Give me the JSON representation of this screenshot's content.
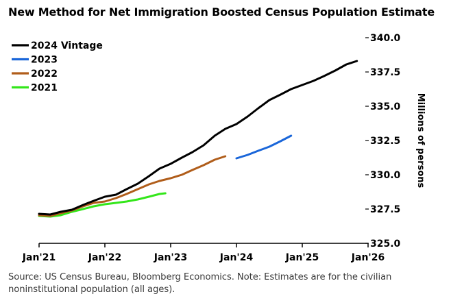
{
  "chart_data": {
    "type": "line",
    "title": "New Method for Net Immigration Boosted Census Population Estimate",
    "xlabel": "",
    "ylabel": "Millions of persons",
    "ylim": [
      325.0,
      340.0
    ],
    "yticks": [
      {
        "value": 340.0,
        "label": "340.0"
      },
      {
        "value": 337.5,
        "label": "337.5"
      },
      {
        "value": 335.0,
        "label": "335.0"
      },
      {
        "value": 332.5,
        "label": "332.5"
      },
      {
        "value": 330.0,
        "label": "330.0"
      },
      {
        "value": 327.5,
        "label": "327.5"
      },
      {
        "value": 325.0,
        "label": "325.0"
      }
    ],
    "xlim": [
      2021.0,
      2026.0
    ],
    "xticks": [
      {
        "value": 2021,
        "label": "Jan'21"
      },
      {
        "value": 2022,
        "label": "Jan'22"
      },
      {
        "value": 2023,
        "label": "Jan'23"
      },
      {
        "value": 2024,
        "label": "Jan'24"
      },
      {
        "value": 2025,
        "label": "Jan'25"
      },
      {
        "value": 2026,
        "label": "Jan'26"
      }
    ],
    "grid": false,
    "legend_position": "top-left",
    "series": [
      {
        "name": "2024 Vintage",
        "color": "#000000",
        "points": [
          [
            2021.0,
            327.15
          ],
          [
            2021.17,
            327.1
          ],
          [
            2021.33,
            327.3
          ],
          [
            2021.5,
            327.45
          ],
          [
            2021.67,
            327.8
          ],
          [
            2021.83,
            328.1
          ],
          [
            2022.0,
            328.4
          ],
          [
            2022.17,
            328.55
          ],
          [
            2022.33,
            328.95
          ],
          [
            2022.5,
            329.35
          ],
          [
            2022.67,
            329.9
          ],
          [
            2022.83,
            330.45
          ],
          [
            2023.0,
            330.8
          ],
          [
            2023.17,
            331.25
          ],
          [
            2023.33,
            331.65
          ],
          [
            2023.5,
            332.15
          ],
          [
            2023.67,
            332.85
          ],
          [
            2023.83,
            333.35
          ],
          [
            2024.0,
            333.7
          ],
          [
            2024.17,
            334.25
          ],
          [
            2024.33,
            334.85
          ],
          [
            2024.5,
            335.45
          ],
          [
            2024.67,
            335.85
          ],
          [
            2024.83,
            336.25
          ],
          [
            2025.0,
            336.55
          ],
          [
            2025.17,
            336.85
          ],
          [
            2025.33,
            337.2
          ],
          [
            2025.5,
            337.6
          ],
          [
            2025.67,
            338.05
          ],
          [
            2025.83,
            338.3
          ]
        ]
      },
      {
        "name": "2023",
        "color": "#1a66d9",
        "points": [
          [
            2024.0,
            331.2
          ],
          [
            2024.17,
            331.45
          ],
          [
            2024.33,
            331.75
          ],
          [
            2024.5,
            332.05
          ],
          [
            2024.67,
            332.45
          ],
          [
            2024.83,
            332.85
          ]
        ]
      },
      {
        "name": "2022",
        "color": "#b05d1a",
        "points": [
          [
            2021.0,
            327.05
          ],
          [
            2021.17,
            327.0
          ],
          [
            2021.33,
            327.2
          ],
          [
            2021.5,
            327.4
          ],
          [
            2021.67,
            327.7
          ],
          [
            2021.83,
            327.95
          ],
          [
            2022.0,
            328.05
          ],
          [
            2022.17,
            328.3
          ],
          [
            2022.33,
            328.6
          ],
          [
            2022.5,
            328.95
          ],
          [
            2022.67,
            329.3
          ],
          [
            2022.83,
            329.55
          ],
          [
            2023.0,
            329.75
          ],
          [
            2023.17,
            330.0
          ],
          [
            2023.33,
            330.35
          ],
          [
            2023.5,
            330.7
          ],
          [
            2023.67,
            331.1
          ],
          [
            2023.83,
            331.35
          ]
        ]
      },
      {
        "name": "2021",
        "color": "#33e61a",
        "points": [
          [
            2021.0,
            327.0
          ],
          [
            2021.17,
            326.95
          ],
          [
            2021.33,
            327.05
          ],
          [
            2021.5,
            327.3
          ],
          [
            2021.67,
            327.5
          ],
          [
            2021.83,
            327.7
          ],
          [
            2022.0,
            327.85
          ],
          [
            2022.17,
            327.95
          ],
          [
            2022.33,
            328.05
          ],
          [
            2022.5,
            328.2
          ],
          [
            2022.67,
            328.4
          ],
          [
            2022.83,
            328.6
          ],
          [
            2022.92,
            328.65
          ]
        ]
      }
    ],
    "source": "Source: US Census Bureau, Bloomberg Economics. Note: Estimates are for the civilian noninstitutional population (all ages)."
  }
}
